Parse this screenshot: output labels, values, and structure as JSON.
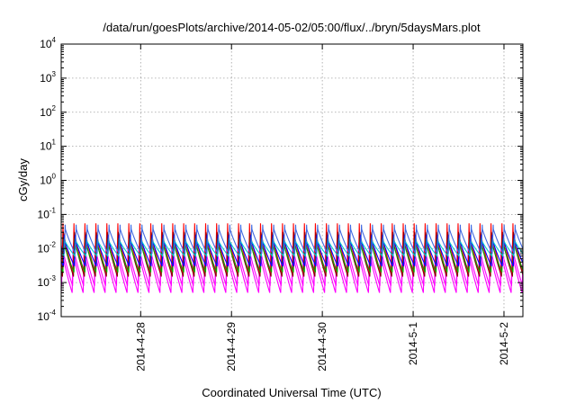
{
  "chart_data": {
    "type": "line",
    "title": "/data/run/goesPlots/archive/2014-05-02/05:00/flux/../bryn/5daysMars.plot",
    "xlabel": "Coordinated Universal Time (UTC)",
    "ylabel": "cGy/day",
    "x_scale": "time",
    "x_range": [
      "2014-04-27T03:00",
      "2014-05-02T05:00"
    ],
    "y_scale": "log",
    "y_range": [
      0.0001,
      10000
    ],
    "grid": true,
    "x_ticks": [
      {
        "date": "2014-04-28",
        "label": "2014-4-28"
      },
      {
        "date": "2014-04-29",
        "label": "2014-4-29"
      },
      {
        "date": "2014-04-30",
        "label": "2014-4-30"
      },
      {
        "date": "2014-05-01",
        "label": "2014-5-1"
      },
      {
        "date": "2014-05-02",
        "label": "2014-5-2"
      }
    ],
    "y_ticks": [
      {
        "value": 0.0001,
        "base": "10",
        "exp": "-4"
      },
      {
        "value": 0.001,
        "base": "10",
        "exp": "-3"
      },
      {
        "value": 0.01,
        "base": "10",
        "exp": "-2"
      },
      {
        "value": 0.1,
        "base": "10",
        "exp": "-1"
      },
      {
        "value": 1,
        "base": "10",
        "exp": "0"
      },
      {
        "value": 10,
        "base": "10",
        "exp": "1"
      },
      {
        "value": 100,
        "base": "10",
        "exp": "2"
      },
      {
        "value": 1000,
        "base": "10",
        "exp": "3"
      },
      {
        "value": 10000,
        "base": "10",
        "exp": "4"
      }
    ],
    "period_hours": 2.9,
    "series": [
      {
        "color": "#ff00ff",
        "peak": 0.012,
        "trough": 0.0005
      },
      {
        "color": "#ff00ff",
        "peak": 0.015,
        "trough": 0.0008
      },
      {
        "color": "#ff0000",
        "peak": 0.055,
        "trough": 0.002
      },
      {
        "color": "#8b0000",
        "peak": 0.03,
        "trough": 0.0015
      },
      {
        "color": "#00aa00",
        "peak": 0.02,
        "trough": 0.002
      },
      {
        "color": "#0000ff",
        "peak": 0.025,
        "trough": 0.003
      },
      {
        "color": "#00cccc",
        "peak": 0.02,
        "trough": 0.006
      },
      {
        "color": "#4169e1",
        "peak": 0.05,
        "trough": 0.007
      }
    ]
  }
}
